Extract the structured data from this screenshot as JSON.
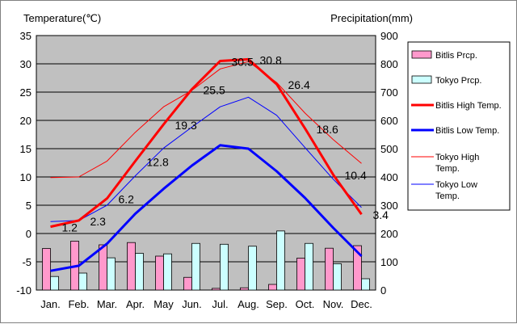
{
  "chart_data": {
    "type": "bar+line",
    "categories": [
      "Jan.",
      "Feb.",
      "Mar.",
      "Apr.",
      "May",
      "Jun.",
      "Jul.",
      "Aug.",
      "Sep.",
      "Oct.",
      "Nov.",
      "Dec."
    ],
    "left_axis": {
      "label": "Temperature(℃)",
      "min": -10,
      "max": 35,
      "step": 5,
      "ticks": [
        "35",
        "30",
        "25",
        "20",
        "15",
        "10",
        "5",
        "0",
        "-5",
        "-10"
      ]
    },
    "right_axis": {
      "label": "Precipitation(mm)",
      "min": 0,
      "max": 900,
      "step": 100,
      "ticks": [
        "900",
        "800",
        "700",
        "600",
        "500",
        "400",
        "300",
        "200",
        "100",
        "0"
      ]
    },
    "grid": true,
    "legend_position": "right",
    "bar_series": [
      {
        "name": "Bitlis Prcp.",
        "color": "#ff99cc",
        "axis": "right",
        "values": [
          147,
          173,
          160,
          168,
          120,
          45,
          6,
          8,
          20,
          113,
          148,
          157
        ]
      },
      {
        "name": "Tokyo Prcp.",
        "color": "#ccffff",
        "axis": "right",
        "values": [
          48,
          60,
          114,
          130,
          128,
          165,
          162,
          155,
          209,
          165,
          93,
          40
        ]
      }
    ],
    "line_series": [
      {
        "name": "Bitlis High Temp.",
        "color": "#ff0000",
        "width": 3,
        "axis": "left",
        "values": [
          1.2,
          2.3,
          6.2,
          12.8,
          19.3,
          25.5,
          30.5,
          30.8,
          26.4,
          18.6,
          10.4,
          3.4
        ]
      },
      {
        "name": "Bitlis Low Temp.",
        "color": "#0000ff",
        "width": 3,
        "axis": "left",
        "values": [
          -6.6,
          -5.7,
          -1.8,
          3.5,
          7.9,
          12.0,
          15.6,
          15.0,
          11.0,
          6.3,
          1.0,
          -4.0
        ]
      },
      {
        "name": "Tokyo High Temp.",
        "color": "#ff0000",
        "width": 1,
        "axis": "left",
        "values": [
          9.9,
          10.0,
          12.8,
          17.9,
          22.4,
          25.3,
          29.1,
          30.4,
          26.7,
          21.3,
          16.6,
          12.4
        ]
      },
      {
        "name": "Tokyo Low Temp.",
        "color": "#0000ff",
        "width": 1,
        "axis": "left",
        "values": [
          2.1,
          2.3,
          5.0,
          10.2,
          15.1,
          18.8,
          22.4,
          24.1,
          20.9,
          15.2,
          9.6,
          4.6
        ]
      }
    ],
    "data_labels": [
      "1.2",
      "2.3",
      "6.2",
      "12.8",
      "19.3",
      "25.5",
      "30.5",
      "30.8",
      "26.4",
      "18.6",
      "10.4",
      "3.4"
    ],
    "plot_background": "#c0c0c0"
  }
}
